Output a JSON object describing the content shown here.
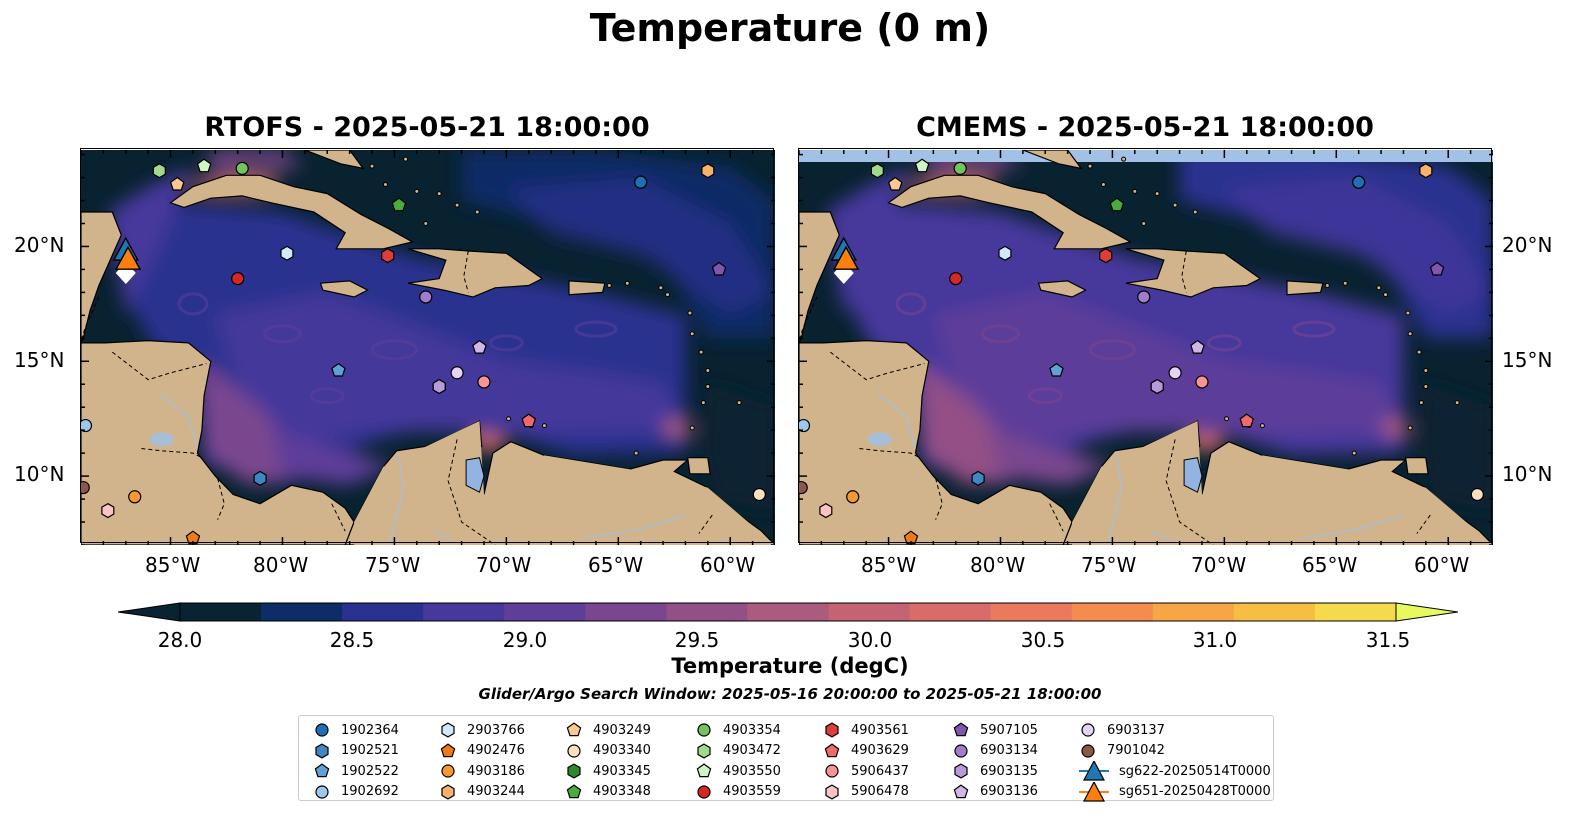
{
  "figure": {
    "title": "Temperature (0 m)",
    "search_window": "Glider/Argo Search Window: 2025-05-16 20:00:00 to 2025-05-21 18:00:00"
  },
  "panels": [
    {
      "title": "RTOFS - 2025-05-21 18:00:00"
    },
    {
      "title": "CMEMS - 2025-05-21 18:00:00"
    }
  ],
  "axes": {
    "lon_labels": [
      "85°W",
      "80°W",
      "75°W",
      "70°W",
      "65°W",
      "60°W"
    ],
    "lat_labels": [
      "20°N",
      "15°N",
      "10°N"
    ]
  },
  "colorbar": {
    "label": "Temperature (degC)",
    "ticks": [
      "28.0",
      "28.5",
      "29.0",
      "29.5",
      "30.0",
      "30.5",
      "31.0",
      "31.5"
    ],
    "colors": [
      "#0a2332",
      "#0e2c66",
      "#2a3190",
      "#47399c",
      "#5f3e9a",
      "#7a468f",
      "#935086",
      "#ab5b7e",
      "#c46373",
      "#d86c68",
      "#ea795d",
      "#f48c4e",
      "#f7a545",
      "#f6bf44",
      "#f4da4c"
    ],
    "extend_colors": {
      "low": "#0a2332",
      "high": "#e8f960"
    }
  },
  "map_colors": {
    "land": "#d2b48c",
    "deep_ocean": "#082230",
    "lake": "#93b3e0",
    "cmems_mask": "#a3c0e6"
  },
  "legend": [
    {
      "label": "1902364",
      "marker": "circle",
      "color": "#1f6fb4"
    },
    {
      "label": "1902521",
      "marker": "hexagon",
      "color": "#3f87c3"
    },
    {
      "label": "1902522",
      "marker": "pentagon",
      "color": "#5fa2d6"
    },
    {
      "label": "1902692",
      "marker": "circle",
      "color": "#9dc9ee"
    },
    {
      "label": "2903766",
      "marker": "hexagon",
      "color": "#d2e8f9"
    },
    {
      "label": "4902476",
      "marker": "pentagon",
      "color": "#f07a12"
    },
    {
      "label": "4903186",
      "marker": "circle",
      "color": "#f59a33"
    },
    {
      "label": "4903244",
      "marker": "hexagon",
      "color": "#f8b26c"
    },
    {
      "label": "4903249",
      "marker": "pentagon",
      "color": "#fbc890"
    },
    {
      "label": "4903340",
      "marker": "circle",
      "color": "#fde0c0"
    },
    {
      "label": "4903345",
      "marker": "hexagon",
      "color": "#2c8a2c"
    },
    {
      "label": "4903348",
      "marker": "pentagon",
      "color": "#48ad3b"
    },
    {
      "label": "4903354",
      "marker": "circle",
      "color": "#72c45e"
    },
    {
      "label": "4903472",
      "marker": "hexagon",
      "color": "#9fdb8a"
    },
    {
      "label": "4903550",
      "marker": "pentagon",
      "color": "#cff6c4"
    },
    {
      "label": "4903559",
      "marker": "circle",
      "color": "#d62728"
    },
    {
      "label": "4903561",
      "marker": "hexagon",
      "color": "#e03c3c"
    },
    {
      "label": "4903629",
      "marker": "pentagon",
      "color": "#f06a6a"
    },
    {
      "label": "5906437",
      "marker": "circle",
      "color": "#f79494"
    },
    {
      "label": "5906478",
      "marker": "hexagon",
      "color": "#fbc3c3"
    },
    {
      "label": "5907105",
      "marker": "pentagon",
      "color": "#7f55b0"
    },
    {
      "label": "6903134",
      "marker": "circle",
      "color": "#a17cc8"
    },
    {
      "label": "6903135",
      "marker": "hexagon",
      "color": "#b79ad8"
    },
    {
      "label": "6903136",
      "marker": "pentagon",
      "color": "#cfb8e8"
    },
    {
      "label": "6903137",
      "marker": "circle",
      "color": "#e5d3f3"
    },
    {
      "label": "7901042",
      "marker": "circle",
      "color": "#8c564b"
    },
    {
      "label": "sg622-20250514T0000",
      "marker": "triangle",
      "color": "#1f77b4"
    },
    {
      "label": "sg651-20250428T0000",
      "marker": "triangle",
      "color": "#ff7f0e"
    }
  ],
  "floats": [
    {
      "id": "1902364",
      "lon": -64.0,
      "lat": 22.8
    },
    {
      "id": "1902521",
      "lon": -81.0,
      "lat": 9.9
    },
    {
      "id": "1902522",
      "lon": -77.5,
      "lat": 14.6
    },
    {
      "id": "1902692",
      "lon": -88.8,
      "lat": 12.2
    },
    {
      "id": "2903766",
      "lon": -79.8,
      "lat": 19.7
    },
    {
      "id": "4902476",
      "lon": -84.0,
      "lat": 7.3
    },
    {
      "id": "4903186",
      "lon": -86.6,
      "lat": 9.1
    },
    {
      "id": "4903244",
      "lon": -61.0,
      "lat": 23.3
    },
    {
      "id": "4903249",
      "lon": -84.7,
      "lat": 22.7
    },
    {
      "id": "4903340",
      "lon": -58.7,
      "lat": 9.2
    },
    {
      "id": "4903345",
      "lon": -73.0,
      "lat": 13.9
    },
    {
      "id": "4903348",
      "lon": -74.8,
      "lat": 21.8
    },
    {
      "id": "4903354",
      "lon": -81.8,
      "lat": 23.4
    },
    {
      "id": "4903472",
      "lon": -85.5,
      "lat": 23.3
    },
    {
      "id": "4903550",
      "lon": -83.5,
      "lat": 23.5
    },
    {
      "id": "4903559",
      "lon": -82.0,
      "lat": 18.6
    },
    {
      "id": "4903561",
      "lon": -75.3,
      "lat": 19.6
    },
    {
      "id": "4903629",
      "lon": -69.0,
      "lat": 12.4
    },
    {
      "id": "5906437",
      "lon": -71.0,
      "lat": 14.1
    },
    {
      "id": "5906478",
      "lon": -87.8,
      "lat": 8.5
    },
    {
      "id": "5907105",
      "lon": -60.5,
      "lat": 19.0
    },
    {
      "id": "6903134",
      "lon": -73.6,
      "lat": 17.8
    },
    {
      "id": "6903135",
      "lon": -73.0,
      "lat": 13.9
    },
    {
      "id": "6903136",
      "lon": -71.2,
      "lat": 15.6
    },
    {
      "id": "6903137",
      "lon": -72.2,
      "lat": 14.5
    },
    {
      "id": "7901042",
      "lon": -88.9,
      "lat": 9.5
    }
  ],
  "gliders": [
    {
      "id": "sg622-20250514T0000",
      "lon": -87.0,
      "lat": 19.8
    },
    {
      "id": "sg651-20250428T0000",
      "lon": -86.9,
      "lat": 19.4
    }
  ]
}
